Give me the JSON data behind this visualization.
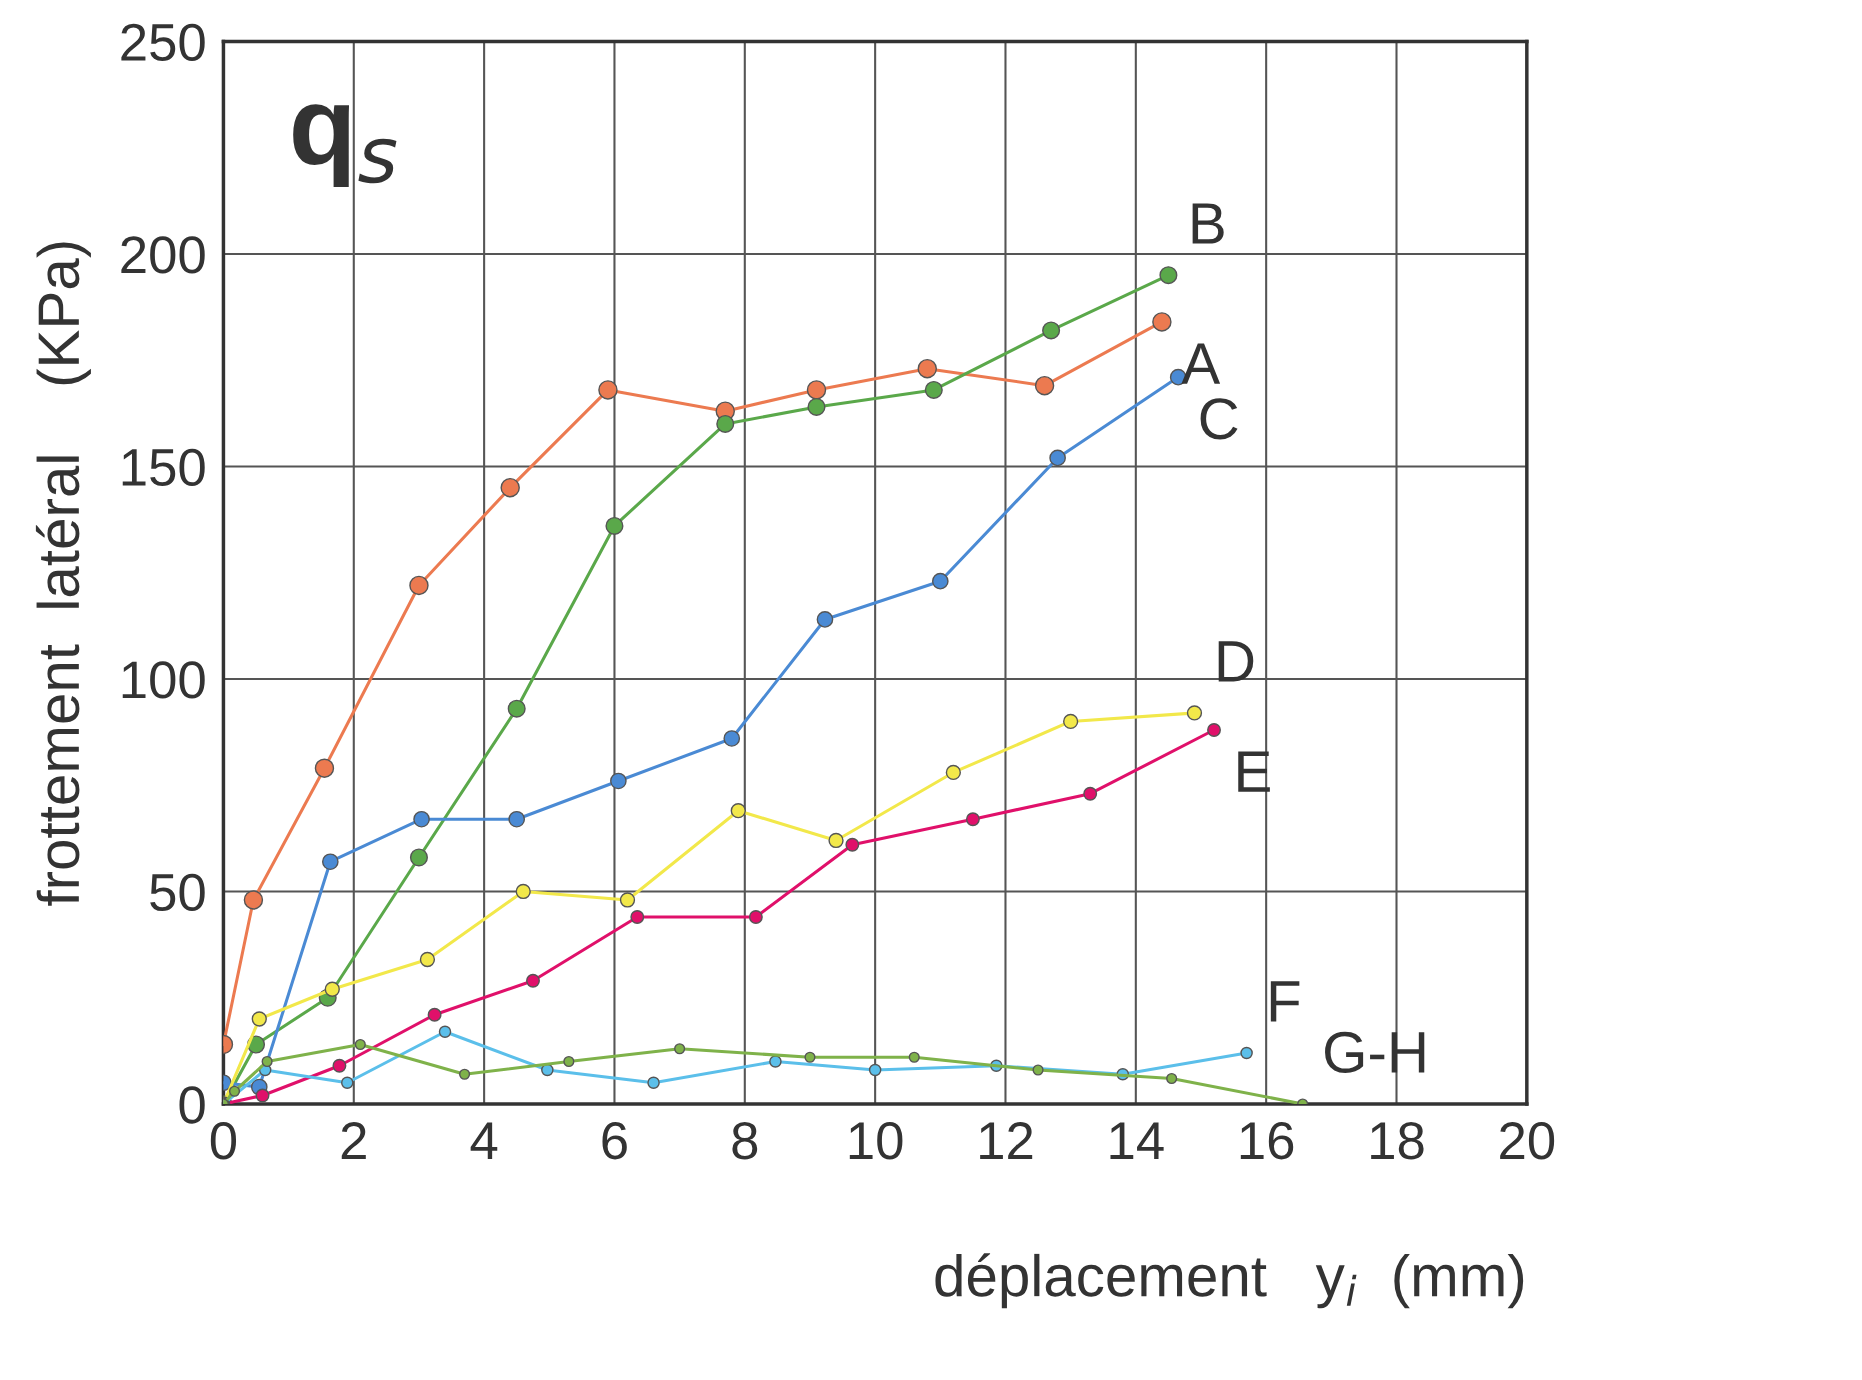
{
  "chart_data": {
    "type": "line",
    "title": "q$_{s}$",
    "xlabel": "déplacement   y$_{i}$  (mm)",
    "ylabel": "frottement  latéral    (KPa)",
    "xlim": [
      0,
      20
    ],
    "ylim": [
      0,
      250
    ],
    "xticks": [
      0,
      2,
      4,
      6,
      8,
      10,
      12,
      14,
      16,
      18,
      20
    ],
    "yticks": [
      0,
      50,
      100,
      150,
      200,
      250
    ],
    "grid": true,
    "marker": "circle",
    "line_style": "solid",
    "legend": false,
    "series": [
      {
        "name": "A",
        "color": "#ec7a50",
        "x": [
          0,
          0.46,
          1.55,
          3.0,
          4.4,
          5.9,
          7.7,
          9.1,
          10.8,
          12.6,
          14.4
        ],
        "values": [
          14,
          48,
          79,
          122,
          145,
          168,
          163,
          168,
          173,
          169,
          184
        ]
      },
      {
        "name": "B",
        "color": "#5aa84a",
        "x": [
          0,
          0.5,
          1.6,
          3.0,
          4.5,
          6.0,
          7.7,
          9.1,
          10.9,
          12.7,
          14.5
        ],
        "values": [
          0,
          14,
          25,
          58,
          93,
          136,
          160,
          164,
          168,
          182,
          195
        ]
      },
      {
        "name": "C",
        "color": "#4a8ad4",
        "x": [
          0,
          0.55,
          1.64,
          3.04,
          4.5,
          6.06,
          7.8,
          9.23,
          11.0,
          12.8,
          14.65
        ],
        "values": [
          5,
          4,
          57,
          67,
          67,
          76,
          86,
          114,
          123,
          152,
          171
        ]
      },
      {
        "name": "D",
        "color": "#f2e84a",
        "x": [
          0,
          0.55,
          1.67,
          3.13,
          4.6,
          6.2,
          7.9,
          9.4,
          11.2,
          13.0,
          14.9
        ],
        "values": [
          0,
          20,
          27,
          34,
          50,
          48,
          69,
          62,
          78,
          90,
          92
        ]
      },
      {
        "name": "E",
        "color": "#e0106a",
        "x": [
          0,
          0.6,
          1.78,
          3.24,
          4.75,
          6.35,
          8.17,
          9.65,
          11.5,
          13.3,
          15.2
        ],
        "values": [
          0,
          2,
          9,
          21,
          29,
          44,
          44,
          61,
          67,
          73,
          88
        ]
      },
      {
        "name": "F",
        "color": "#5bbfea",
        "x": [
          0,
          0.64,
          1.9,
          3.4,
          4.97,
          6.6,
          8.47,
          10.0,
          11.86,
          13.8,
          15.7
        ],
        "values": [
          0,
          8,
          5,
          17,
          8,
          5,
          10,
          8,
          9,
          7,
          12
        ]
      },
      {
        "name": "G-H",
        "color": "#7fb24a",
        "x": [
          0,
          0.17,
          0.67,
          2.1,
          3.7,
          5.3,
          7.0,
          9.0,
          10.6,
          12.5,
          14.55,
          16.56
        ],
        "values": [
          0,
          3,
          10,
          14,
          7,
          10,
          13,
          11,
          11,
          8,
          6,
          0
        ]
      }
    ]
  }
}
